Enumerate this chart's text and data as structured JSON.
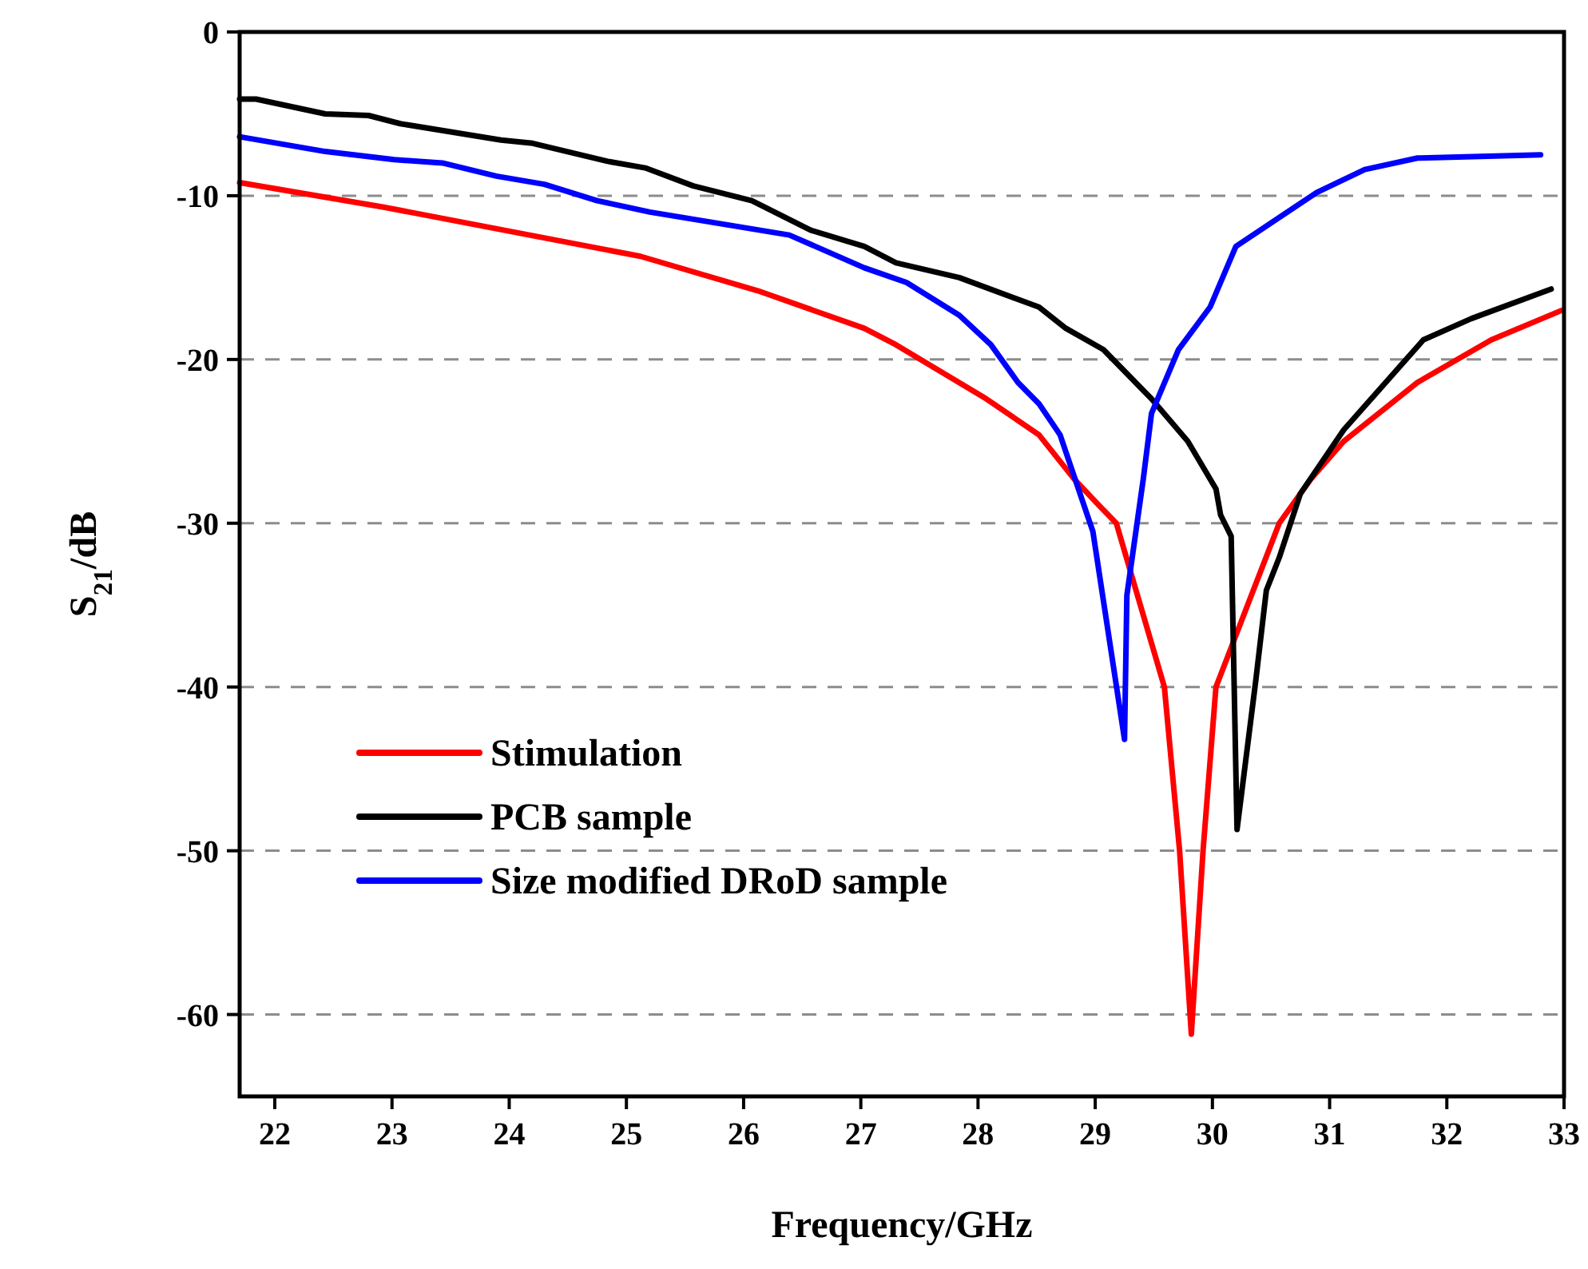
{
  "chart_data": {
    "type": "line",
    "xlabel": "Frequency/GHz",
    "ylabel": "S$_{21}$/dB",
    "xlim": [
      21.7,
      33
    ],
    "xticks": [
      22,
      23,
      24,
      25,
      26,
      27,
      28,
      29,
      30,
      31,
      32,
      33
    ],
    "ylim": [
      -65,
      0
    ],
    "yticks": [
      0,
      -10,
      -20,
      -30,
      -40,
      -50,
      -60
    ],
    "grid": "y",
    "legend": "bottom left",
    "marker": "none",
    "line_style": "solid",
    "series": [
      {
        "name": "Stimulation",
        "color": "#ff0000",
        "x": [
          21.7,
          22.93,
          25.12,
          26.12,
          27.03,
          27.3,
          28.07,
          28.52,
          28.82,
          29.03,
          29.18,
          29.59,
          29.72,
          29.82,
          29.92,
          30.03,
          30.57,
          30.84,
          31.12,
          31.75,
          32.38,
          32.98
        ],
        "values": [
          -9.2,
          -10.7,
          -13.7,
          -15.8,
          -18.1,
          -19.1,
          -22.4,
          -24.6,
          -27.3,
          -28.9,
          -30,
          -40,
          -50,
          -61.2,
          -50,
          -40,
          -30,
          -27.3,
          -25,
          -21.4,
          -18.8,
          -17
        ]
      },
      {
        "name": "PCB sample",
        "color": "#000000",
        "x": [
          21.7,
          21.84,
          22.43,
          22.8,
          23.07,
          23.93,
          24.2,
          24.84,
          25.16,
          25.57,
          26.07,
          26.57,
          27.03,
          27.3,
          27.84,
          28.52,
          28.75,
          29.07,
          29.48,
          29.79,
          30.03,
          30.07,
          30.16,
          30.21,
          30.37,
          30.46,
          30.57,
          30.75,
          31.12,
          31.8,
          32.21,
          32.89
        ],
        "values": [
          -4.1,
          -4.1,
          -5,
          -5.1,
          -5.6,
          -6.6,
          -6.8,
          -7.9,
          -8.3,
          -9.4,
          -10.3,
          -12.1,
          -13.1,
          -14.1,
          -15,
          -16.8,
          -18.1,
          -19.4,
          -22.4,
          -25,
          -27.9,
          -29.5,
          -30.8,
          -48.7,
          -39.6,
          -34.1,
          -32.1,
          -28.2,
          -24.3,
          -18.8,
          -17.5,
          -15.7
        ]
      },
      {
        "name": "Size modified DRoD sample",
        "color": "#0000ff",
        "x": [
          21.7,
          22.43,
          23.02,
          23.43,
          23.89,
          24.3,
          24.75,
          25.2,
          26.39,
          27.03,
          27.39,
          27.84,
          28.11,
          28.34,
          28.52,
          28.7,
          28.98,
          29.25,
          29.27,
          29.41,
          29.48,
          29.71,
          29.98,
          30.2,
          30.89,
          31.3,
          31.75,
          32.8
        ],
        "values": [
          -6.4,
          -7.3,
          -7.8,
          -8,
          -8.8,
          -9.3,
          -10.3,
          -11,
          -12.4,
          -14.4,
          -15.3,
          -17.3,
          -19.1,
          -21.4,
          -22.7,
          -24.6,
          -30.5,
          -43.2,
          -34.4,
          -27.3,
          -23.3,
          -19.4,
          -16.8,
          -13.1,
          -9.8,
          -8.4,
          -7.7,
          -7.5
        ]
      }
    ]
  }
}
